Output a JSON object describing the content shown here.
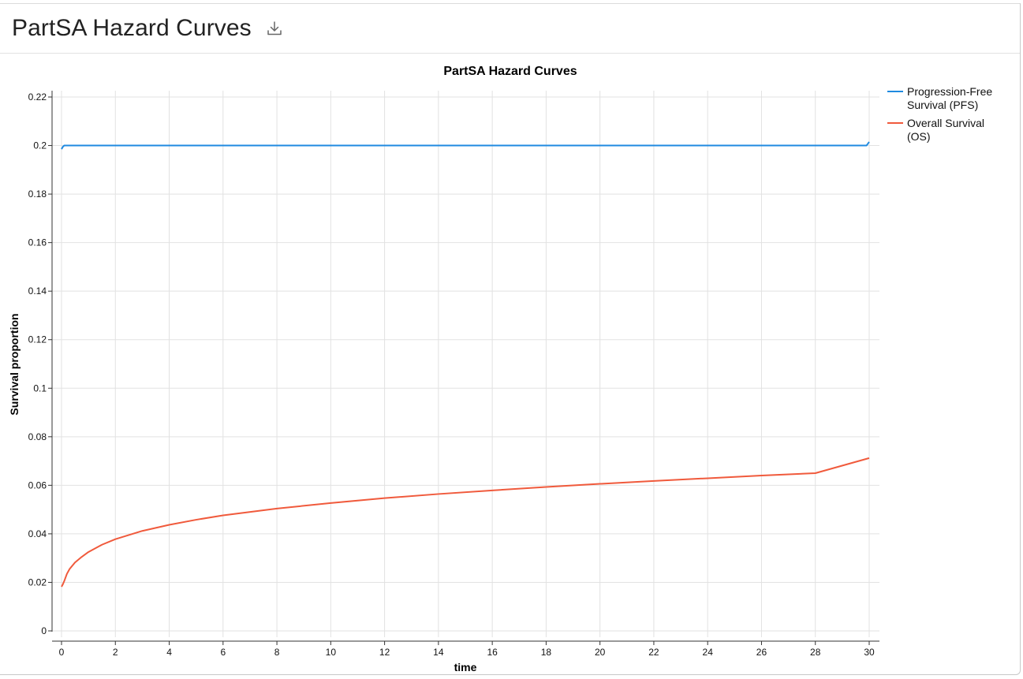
{
  "page": {
    "title": "PartSA Hazard Curves",
    "download_icon": "download-icon"
  },
  "colors": {
    "pfs": "#1f8ae0",
    "os": "#f05a3c",
    "grid": "#e2e2e2",
    "axis": "#333333"
  },
  "chart_data": {
    "type": "line",
    "title": "PartSA Hazard Curves",
    "xlabel": "time",
    "ylabel": "Survival proportion",
    "xlim": [
      0,
      30
    ],
    "ylim": [
      0,
      0.22
    ],
    "x_ticks": [
      0,
      2,
      4,
      6,
      8,
      10,
      12,
      14,
      16,
      18,
      20,
      22,
      24,
      26,
      28,
      30
    ],
    "y_ticks": [
      0,
      0.02,
      0.04,
      0.06,
      0.08,
      0.1,
      0.12,
      0.14,
      0.16,
      0.18,
      0.2,
      0.22
    ],
    "y_tick_labels": [
      "0",
      "0.02",
      "0.04",
      "0.06",
      "0.08",
      "0.1",
      "0.12",
      "0.14",
      "0.16",
      "0.18",
      "0.2",
      "0.22"
    ],
    "grid": true,
    "legend_position": "top-right",
    "series": [
      {
        "name": "Progression-Free Survival (PFS)",
        "legend_lines": [
          "Progression-Free",
          "Survival (PFS)"
        ],
        "color": "#1f8ae0",
        "x": [
          0,
          0.05,
          0.1,
          0.2,
          0.5,
          1,
          2,
          4,
          6,
          8,
          10,
          12,
          14,
          16,
          18,
          20,
          22,
          24,
          26,
          28,
          29.9,
          30
        ],
        "y": [
          0.1985,
          0.1995,
          0.2,
          0.2,
          0.2,
          0.2,
          0.2,
          0.2,
          0.2,
          0.2,
          0.2,
          0.2,
          0.2,
          0.2,
          0.2,
          0.2,
          0.2,
          0.2,
          0.2,
          0.2,
          0.2,
          0.2015
        ]
      },
      {
        "name": "Overall Survival (OS)",
        "legend_lines": [
          "Overall Survival",
          "(OS)"
        ],
        "color": "#f05a3c",
        "x": [
          0,
          0.05,
          0.1,
          0.2,
          0.3,
          0.5,
          0.75,
          1,
          1.5,
          2,
          3,
          4,
          5,
          6,
          8,
          10,
          12,
          14,
          16,
          18,
          20,
          22,
          24,
          26,
          28,
          30
        ],
        "y": [
          0.0182,
          0.0192,
          0.0205,
          0.0235,
          0.0255,
          0.0282,
          0.0305,
          0.0325,
          0.0355,
          0.0378,
          0.0412,
          0.0437,
          0.0458,
          0.0476,
          0.0504,
          0.0527,
          0.0547,
          0.0564,
          0.0579,
          0.0593,
          0.0606,
          0.0618,
          0.0629,
          0.064,
          0.065,
          0.0712
        ]
      }
    ]
  }
}
